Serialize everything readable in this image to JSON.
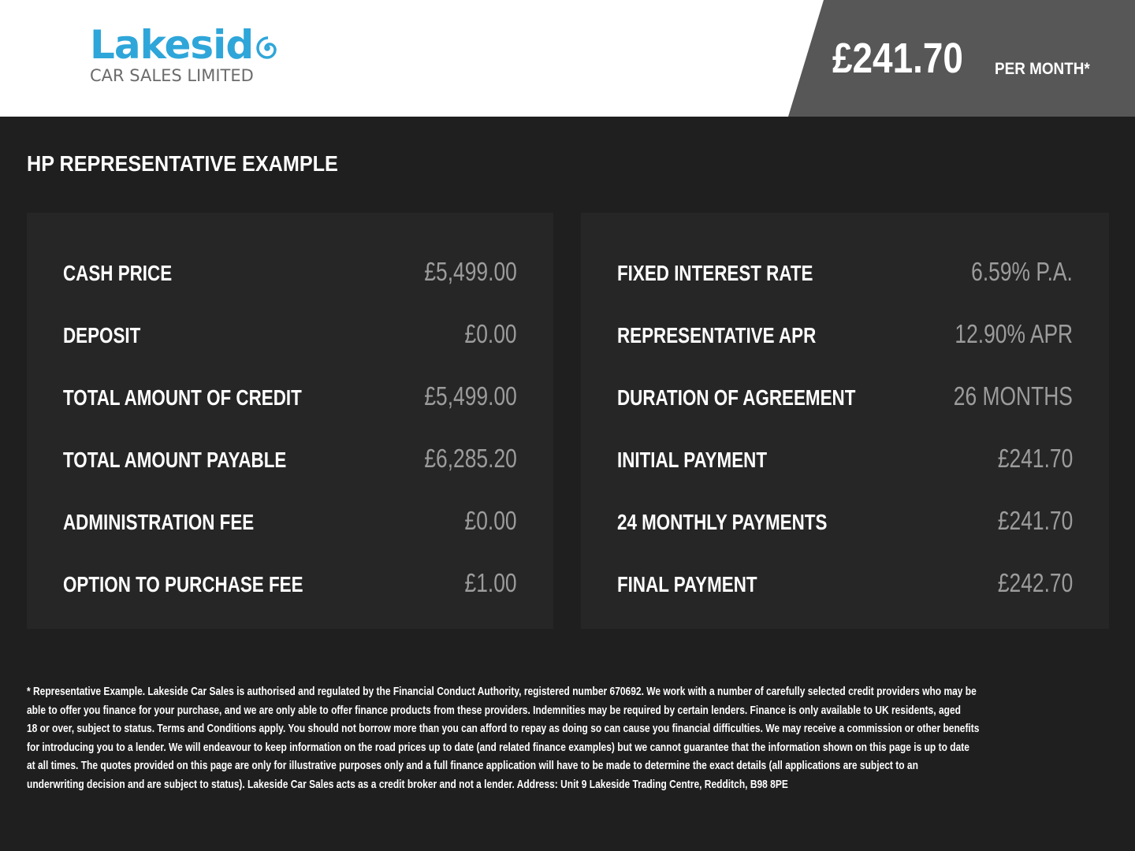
{
  "logo": {
    "name": "Lakeside",
    "name_prefix": "Lakesid",
    "subtitle": "CAR SALES LIMITED",
    "brand_color": "#2fa6d9"
  },
  "price_badge": {
    "amount": "£241.70",
    "label": "PER MONTH*"
  },
  "title": "HP REPRESENTATIVE EXAMPLE",
  "left_panel": [
    {
      "label": "CASH PRICE",
      "value": "£5,499.00"
    },
    {
      "label": "DEPOSIT",
      "value": "£0.00"
    },
    {
      "label": "TOTAL AMOUNT OF CREDIT",
      "value": "£5,499.00"
    },
    {
      "label": "TOTAL AMOUNT PAYABLE",
      "value": "£6,285.20"
    },
    {
      "label": "ADMINISTRATION FEE",
      "value": "£0.00"
    },
    {
      "label": "OPTION TO PURCHASE FEE",
      "value": "£1.00"
    }
  ],
  "right_panel": [
    {
      "label": "FIXED INTEREST RATE",
      "value": "6.59% P.A."
    },
    {
      "label": "REPRESENTATIVE APR",
      "value": "12.90% APR"
    },
    {
      "label": "DURATION OF AGREEMENT",
      "value": "26 MONTHS"
    },
    {
      "label": "INITIAL PAYMENT",
      "value": "£241.70"
    },
    {
      "label": "24 MONTHLY PAYMENTS",
      "value": "£241.70"
    },
    {
      "label": "FINAL PAYMENT",
      "value": "£242.70"
    }
  ],
  "footnote_lines": [
    "* Representative Example. Lakeside Car Sales is authorised and regulated by the Financial Conduct Authority, registered number 670692. We work with a number of carefully selected credit providers who may be",
    "able to offer you finance for your purchase, and we are only able to offer finance products from these providers. Indemnities may be required by certain lenders. Finance is only available to UK residents, aged",
    "18 or over, subject to status. Terms and Conditions apply. You should not borrow more than you can afford to repay as doing so can cause you financial difficulties. We may receive a commission or other benefits",
    "for introducing you to a lender. We will endeavour to keep information on the road prices up to date (and related finance examples) but we cannot guarantee that the information shown on this page is up to date",
    "at all times. The quotes provided on this page are only for illustrative purposes only and a full finance application will have to be made to determine the exact details (all applications are subject to an",
    "underwriting decision and are subject to status). Lakeside Car Sales acts as a credit broker and not a lender. Address: Unit 9 Lakeside Trading Centre, Redditch, B98 8PE"
  ]
}
